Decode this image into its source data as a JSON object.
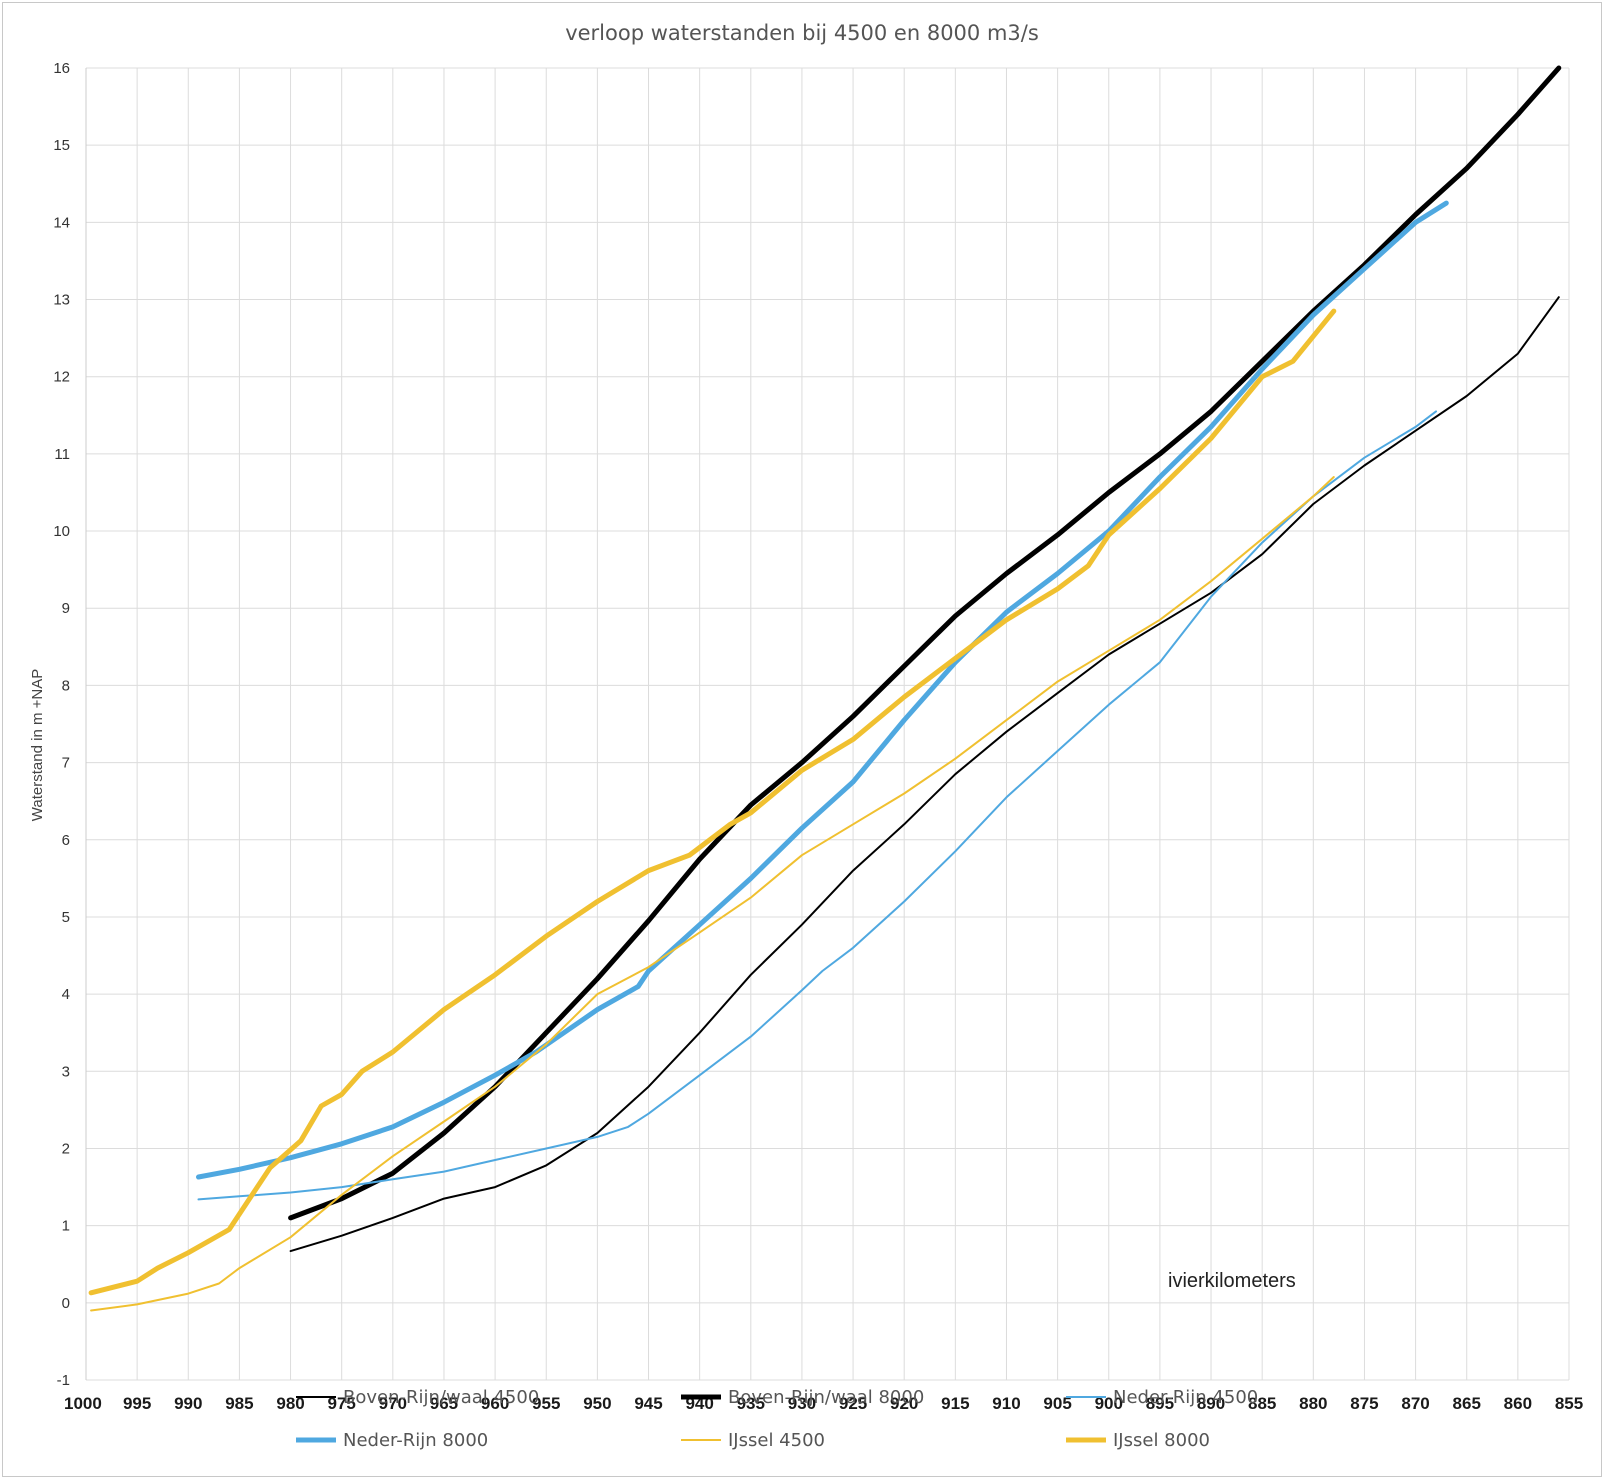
{
  "chart_data": {
    "type": "line",
    "title": "verloop waterstanden bij 4500 en 8000 m3/s",
    "xlabel": "",
    "ylabel": "Waterstand in m +NAP",
    "annotation": "ivierkilometers",
    "xlim": [
      1000,
      855
    ],
    "x_reversed": true,
    "ylim": [
      -1,
      16
    ],
    "grid": true,
    "legend_position": "bottom",
    "x_tick_labels": [
      "1000",
      "995",
      "990",
      "985",
      "980",
      "975",
      "970",
      "965",
      "960",
      "955",
      "950",
      "945",
      "940",
      "935",
      "930",
      "925",
      "920",
      "915",
      "910",
      "905",
      "900",
      "895",
      "890",
      "885",
      "880",
      "875",
      "870",
      "865",
      "860",
      "855"
    ],
    "y_tick_labels": [
      "-1",
      "0",
      "1",
      "2",
      "3",
      "4",
      "5",
      "6",
      "7",
      "8",
      "9",
      "10",
      "11",
      "12",
      "13",
      "14",
      "15",
      "16"
    ],
    "series": [
      {
        "name": "Boven-Rijn/waal 4500",
        "color": "#000000",
        "width": 2,
        "points": [
          [
            980,
            0.67
          ],
          [
            975,
            0.87
          ],
          [
            970,
            1.1
          ],
          [
            965,
            1.35
          ],
          [
            960,
            1.5
          ],
          [
            955,
            1.78
          ],
          [
            950,
            2.2
          ],
          [
            945,
            2.8
          ],
          [
            940,
            3.5
          ],
          [
            935,
            4.25
          ],
          [
            930,
            4.9
          ],
          [
            925,
            5.6
          ],
          [
            920,
            6.2
          ],
          [
            915,
            6.85
          ],
          [
            910,
            7.4
          ],
          [
            905,
            7.9
          ],
          [
            900,
            8.4
          ],
          [
            895,
            8.8
          ],
          [
            890,
            9.2
          ],
          [
            885,
            9.7
          ],
          [
            880,
            10.35
          ],
          [
            875,
            10.85
          ],
          [
            870,
            11.3
          ],
          [
            865,
            11.75
          ],
          [
            860,
            12.3
          ],
          [
            856,
            13.03
          ]
        ]
      },
      {
        "name": "Boven-Rijn/waal 8000",
        "color": "#000000",
        "width": 5,
        "points": [
          [
            980,
            1.1
          ],
          [
            975,
            1.35
          ],
          [
            970,
            1.68
          ],
          [
            965,
            2.2
          ],
          [
            960,
            2.8
          ],
          [
            955,
            3.5
          ],
          [
            950,
            4.2
          ],
          [
            945,
            4.95
          ],
          [
            940,
            5.75
          ],
          [
            935,
            6.45
          ],
          [
            930,
            7.0
          ],
          [
            925,
            7.6
          ],
          [
            920,
            8.25
          ],
          [
            915,
            8.9
          ],
          [
            910,
            9.45
          ],
          [
            905,
            9.95
          ],
          [
            900,
            10.5
          ],
          [
            895,
            11.0
          ],
          [
            890,
            11.55
          ],
          [
            885,
            12.2
          ],
          [
            880,
            12.85
          ],
          [
            875,
            13.45
          ],
          [
            870,
            14.1
          ],
          [
            865,
            14.7
          ],
          [
            860,
            15.4
          ],
          [
            856,
            16.0
          ]
        ]
      },
      {
        "name": "Neder-Rijn 4500",
        "color": "#4FA8E0",
        "width": 2,
        "points": [
          [
            989,
            1.34
          ],
          [
            985,
            1.38
          ],
          [
            980,
            1.43
          ],
          [
            975,
            1.5
          ],
          [
            970,
            1.6
          ],
          [
            965,
            1.7
          ],
          [
            960,
            1.85
          ],
          [
            955,
            2.0
          ],
          [
            950,
            2.15
          ],
          [
            947,
            2.28
          ],
          [
            945,
            2.45
          ],
          [
            940,
            2.95
          ],
          [
            935,
            3.45
          ],
          [
            930,
            4.05
          ],
          [
            928,
            4.3
          ],
          [
            925,
            4.6
          ],
          [
            920,
            5.2
          ],
          [
            915,
            5.85
          ],
          [
            910,
            6.55
          ],
          [
            905,
            7.15
          ],
          [
            900,
            7.75
          ],
          [
            895,
            8.3
          ],
          [
            890,
            9.15
          ],
          [
            885,
            9.85
          ],
          [
            880,
            10.45
          ],
          [
            875,
            10.95
          ],
          [
            870,
            11.35
          ],
          [
            868,
            11.55
          ]
        ]
      },
      {
        "name": "Neder-Rijn 8000",
        "color": "#4FA8E0",
        "width": 5,
        "points": [
          [
            989,
            1.63
          ],
          [
            985,
            1.73
          ],
          [
            980,
            1.88
          ],
          [
            975,
            2.06
          ],
          [
            970,
            2.28
          ],
          [
            965,
            2.6
          ],
          [
            960,
            2.95
          ],
          [
            956,
            3.25
          ],
          [
            950,
            3.8
          ],
          [
            946,
            4.1
          ],
          [
            945,
            4.3
          ],
          [
            940,
            4.9
          ],
          [
            935,
            5.5
          ],
          [
            930,
            6.15
          ],
          [
            925,
            6.75
          ],
          [
            920,
            7.55
          ],
          [
            915,
            8.3
          ],
          [
            910,
            8.95
          ],
          [
            905,
            9.45
          ],
          [
            900,
            10.0
          ],
          [
            895,
            10.7
          ],
          [
            890,
            11.35
          ],
          [
            885,
            12.1
          ],
          [
            880,
            12.8
          ],
          [
            875,
            13.4
          ],
          [
            870,
            14.0
          ],
          [
            867,
            14.25
          ]
        ]
      },
      {
        "name": "IJssel 4500",
        "color": "#F0C030",
        "width": 2,
        "points": [
          [
            999.5,
            -0.1
          ],
          [
            995,
            -0.02
          ],
          [
            990,
            0.12
          ],
          [
            987,
            0.25
          ],
          [
            985,
            0.45
          ],
          [
            980,
            0.85
          ],
          [
            975,
            1.4
          ],
          [
            970,
            1.9
          ],
          [
            965,
            2.35
          ],
          [
            960,
            2.8
          ],
          [
            955,
            3.35
          ],
          [
            950,
            4.0
          ],
          [
            945,
            4.35
          ],
          [
            940,
            4.8
          ],
          [
            935,
            5.25
          ],
          [
            930,
            5.8
          ],
          [
            925,
            6.2
          ],
          [
            920,
            6.6
          ],
          [
            915,
            7.05
          ],
          [
            910,
            7.55
          ],
          [
            905,
            8.05
          ],
          [
            900,
            8.45
          ],
          [
            895,
            8.85
          ],
          [
            890,
            9.35
          ],
          [
            885,
            9.9
          ],
          [
            880,
            10.45
          ],
          [
            878,
            10.7
          ]
        ]
      },
      {
        "name": "IJssel 8000",
        "color": "#F0C030",
        "width": 5,
        "points": [
          [
            999.5,
            0.13
          ],
          [
            995,
            0.28
          ],
          [
            993,
            0.45
          ],
          [
            990,
            0.65
          ],
          [
            986,
            0.95
          ],
          [
            984,
            1.35
          ],
          [
            982,
            1.75
          ],
          [
            979,
            2.1
          ],
          [
            977,
            2.55
          ],
          [
            975,
            2.7
          ],
          [
            973,
            3.0
          ],
          [
            970,
            3.25
          ],
          [
            965,
            3.8
          ],
          [
            960,
            4.25
          ],
          [
            955,
            4.75
          ],
          [
            950,
            5.2
          ],
          [
            945,
            5.6
          ],
          [
            941,
            5.8
          ],
          [
            937,
            6.2
          ],
          [
            935,
            6.35
          ],
          [
            930,
            6.9
          ],
          [
            925,
            7.3
          ],
          [
            920,
            7.85
          ],
          [
            915,
            8.35
          ],
          [
            910,
            8.85
          ],
          [
            905,
            9.25
          ],
          [
            902,
            9.55
          ],
          [
            900,
            9.95
          ],
          [
            895,
            10.55
          ],
          [
            890,
            11.2
          ],
          [
            885,
            12.0
          ],
          [
            882,
            12.2
          ],
          [
            878,
            12.85
          ]
        ]
      }
    ]
  }
}
